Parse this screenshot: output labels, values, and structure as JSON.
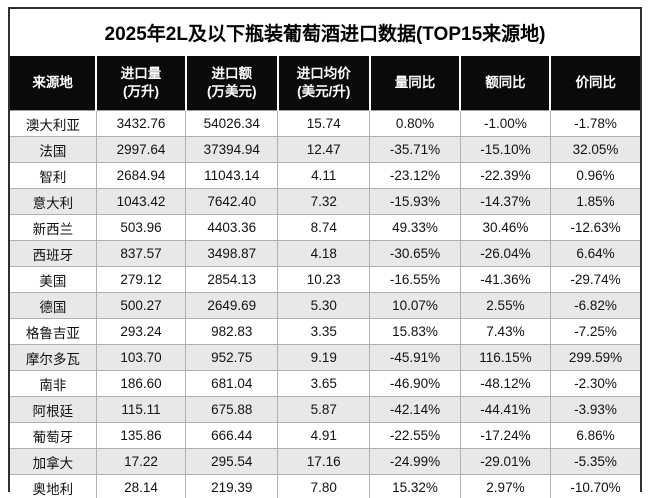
{
  "title": "2025年2L及以下瓶装葡萄酒进口数据(TOP15来源地)",
  "table": {
    "header": [
      {
        "label": "来源地",
        "sub": ""
      },
      {
        "label": "进口量",
        "sub": "(万升)"
      },
      {
        "label": "进口额",
        "sub": "(万美元)"
      },
      {
        "label": "进口均价",
        "sub": "(美元/升)"
      },
      {
        "label": "量同比",
        "sub": ""
      },
      {
        "label": "额同比",
        "sub": ""
      },
      {
        "label": "价同比",
        "sub": ""
      }
    ],
    "rows": [
      [
        "澳大利亚",
        "3432.76",
        "54026.34",
        "15.74",
        "0.80%",
        "-1.00%",
        "-1.78%"
      ],
      [
        "法国",
        "2997.64",
        "37394.94",
        "12.47",
        "-35.71%",
        "-15.10%",
        "32.05%"
      ],
      [
        "智利",
        "2684.94",
        "11043.14",
        "4.11",
        "-23.12%",
        "-22.39%",
        "0.96%"
      ],
      [
        "意大利",
        "1043.42",
        "7642.40",
        "7.32",
        "-15.93%",
        "-14.37%",
        "1.85%"
      ],
      [
        "新西兰",
        "503.96",
        "4403.36",
        "8.74",
        "49.33%",
        "30.46%",
        "-12.63%"
      ],
      [
        "西班牙",
        "837.57",
        "3498.87",
        "4.18",
        "-30.65%",
        "-26.04%",
        "6.64%"
      ],
      [
        "美国",
        "279.12",
        "2854.13",
        "10.23",
        "-16.55%",
        "-41.36%",
        "-29.74%"
      ],
      [
        "德国",
        "500.27",
        "2649.69",
        "5.30",
        "10.07%",
        "2.55%",
        "-6.82%"
      ],
      [
        "格鲁吉亚",
        "293.24",
        "982.83",
        "3.35",
        "15.83%",
        "7.43%",
        "-7.25%"
      ],
      [
        "摩尔多瓦",
        "103.70",
        "952.75",
        "9.19",
        "-45.91%",
        "116.15%",
        "299.59%"
      ],
      [
        "南非",
        "186.60",
        "681.04",
        "3.65",
        "-46.90%",
        "-48.12%",
        "-2.30%"
      ],
      [
        "阿根廷",
        "115.11",
        "675.88",
        "5.87",
        "-42.14%",
        "-44.41%",
        "-3.93%"
      ],
      [
        "葡萄牙",
        "135.86",
        "666.44",
        "4.91",
        "-22.55%",
        "-17.24%",
        "6.86%"
      ],
      [
        "加拿大",
        "17.22",
        "295.54",
        "17.16",
        "-24.99%",
        "-29.01%",
        "-5.35%"
      ],
      [
        "奥地利",
        "28.14",
        "219.39",
        "7.80",
        "15.32%",
        "2.97%",
        "-10.70%"
      ]
    ]
  },
  "chart_data": {
    "type": "table",
    "title": "2025年2L及以下瓶装葡萄酒进口数据(TOP15来源地)",
    "columns": [
      "来源地",
      "进口量(万升)",
      "进口额(万美元)",
      "进口均价(美元/升)",
      "量同比",
      "额同比",
      "价同比"
    ],
    "rows": [
      [
        "澳大利亚",
        3432.76,
        54026.34,
        15.74,
        "0.80%",
        "-1.00%",
        "-1.78%"
      ],
      [
        "法国",
        2997.64,
        37394.94,
        12.47,
        "-35.71%",
        "-15.10%",
        "32.05%"
      ],
      [
        "智利",
        2684.94,
        11043.14,
        4.11,
        "-23.12%",
        "-22.39%",
        "0.96%"
      ],
      [
        "意大利",
        1043.42,
        7642.4,
        7.32,
        "-15.93%",
        "-14.37%",
        "1.85%"
      ],
      [
        "新西兰",
        503.96,
        4403.36,
        8.74,
        "49.33%",
        "30.46%",
        "-12.63%"
      ],
      [
        "西班牙",
        837.57,
        3498.87,
        4.18,
        "-30.65%",
        "-26.04%",
        "6.64%"
      ],
      [
        "美国",
        279.12,
        2854.13,
        10.23,
        "-16.55%",
        "-41.36%",
        "-29.74%"
      ],
      [
        "德国",
        500.27,
        2649.69,
        5.3,
        "10.07%",
        "2.55%",
        "-6.82%"
      ],
      [
        "格鲁吉亚",
        293.24,
        982.83,
        3.35,
        "15.83%",
        "7.43%",
        "-7.25%"
      ],
      [
        "摩尔多瓦",
        103.7,
        952.75,
        9.19,
        "-45.91%",
        "116.15%",
        "299.59%"
      ],
      [
        "南非",
        186.6,
        681.04,
        3.65,
        "-46.90%",
        "-48.12%",
        "-2.30%"
      ],
      [
        "阿根廷",
        115.11,
        675.88,
        5.87,
        "-42.14%",
        "-44.41%",
        "-3.93%"
      ],
      [
        "葡萄牙",
        135.86,
        666.44,
        4.91,
        "-22.55%",
        "-17.24%",
        "6.86%"
      ],
      [
        "加拿大",
        17.22,
        295.54,
        17.16,
        "-24.99%",
        "-29.01%",
        "-5.35%"
      ],
      [
        "奥地利",
        28.14,
        219.39,
        7.8,
        "15.32%",
        "2.97%",
        "-10.70%"
      ]
    ]
  },
  "colors": {
    "header_bg": "#0a0a0a",
    "header_text": "#ffffff",
    "row_bg": "#ffffff",
    "row_alt_bg": "#e8e8e8",
    "grid_border": "#b0b0b0",
    "outer_border": "#2f2f2f",
    "title_text": "#000000"
  }
}
